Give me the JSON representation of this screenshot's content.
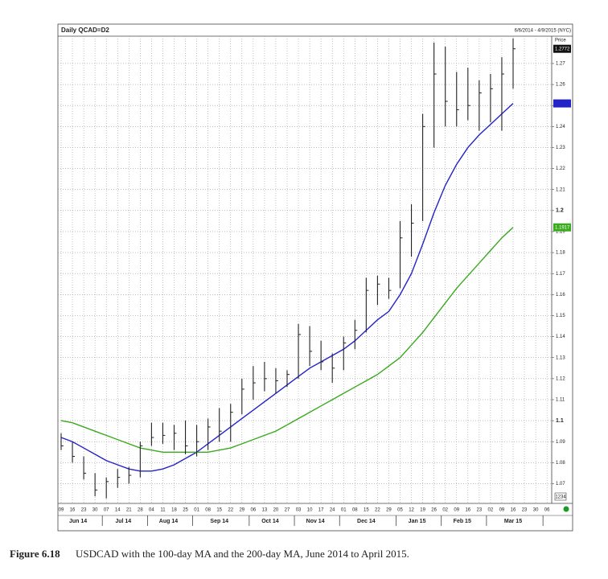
{
  "chart_data": {
    "type": "ohlc",
    "title": "Daily QCAD=D2",
    "date_range": "6/6/2014 - 4/9/2015 (NYC)",
    "price_label": "Price",
    "corner_label": "1234",
    "categories": [
      "09",
      "16",
      "23",
      "30",
      "07",
      "14",
      "21",
      "28",
      "04",
      "11",
      "18",
      "25",
      "01",
      "08",
      "15",
      "22",
      "29",
      "06",
      "13",
      "20",
      "27",
      "03",
      "10",
      "17",
      "24",
      "01",
      "08",
      "15",
      "22",
      "29",
      "05",
      "12",
      "19",
      "26",
      "02",
      "09",
      "16",
      "23",
      "02",
      "09",
      "16",
      "23",
      "30",
      "06"
    ],
    "months": [
      "Jun 14",
      "Jul 14",
      "Aug 14",
      "Sep 14",
      "Oct 14",
      "Nov 14",
      "Dec 14",
      "Jan 15",
      "Feb 15",
      "Mar 15"
    ],
    "high": [
      1.094,
      1.09,
      1.083,
      1.075,
      1.073,
      1.077,
      1.078,
      1.09,
      1.099,
      1.099,
      1.098,
      1.1,
      1.098,
      1.101,
      1.106,
      1.108,
      1.12,
      1.126,
      1.128,
      1.125,
      1.124,
      1.146,
      1.145,
      1.138,
      1.132,
      1.14,
      1.148,
      1.168,
      1.169,
      1.168,
      1.195,
      1.203,
      1.246,
      1.28,
      1.278,
      1.266,
      1.268,
      1.262,
      1.265,
      1.273,
      1.282,
      null,
      null,
      null
    ],
    "low": [
      1.086,
      1.08,
      1.072,
      1.064,
      1.063,
      1.068,
      1.07,
      1.073,
      1.088,
      1.089,
      1.086,
      1.084,
      1.083,
      1.086,
      1.09,
      1.09,
      1.103,
      1.11,
      1.114,
      1.113,
      1.116,
      1.12,
      1.126,
      1.124,
      1.118,
      1.124,
      1.134,
      1.142,
      1.155,
      1.158,
      1.163,
      1.178,
      1.195,
      1.23,
      1.24,
      1.24,
      1.243,
      1.238,
      1.242,
      1.238,
      1.258,
      null,
      null,
      null
    ],
    "close": [
      1.088,
      1.083,
      1.075,
      1.067,
      1.071,
      1.073,
      1.074,
      1.088,
      1.092,
      1.093,
      1.094,
      1.088,
      1.09,
      1.097,
      1.095,
      1.104,
      1.115,
      1.118,
      1.12,
      1.119,
      1.122,
      1.141,
      1.133,
      1.128,
      1.125,
      1.137,
      1.143,
      1.162,
      1.165,
      1.162,
      1.187,
      1.194,
      1.24,
      1.265,
      1.252,
      1.248,
      1.25,
      1.256,
      1.258,
      1.265,
      1.277,
      null,
      null,
      null
    ],
    "bar_color": "#222222",
    "last_price_label": "1.2772",
    "moving_averages": [
      {
        "color": "#2323c8",
        "values": [
          1.092,
          1.09,
          1.087,
          1.084,
          1.081,
          1.079,
          1.077,
          1.076,
          1.076,
          1.077,
          1.079,
          1.082,
          1.085,
          1.089,
          1.093,
          1.097,
          1.101,
          1.105,
          1.109,
          1.113,
          1.117,
          1.121,
          1.125,
          1.128,
          1.131,
          1.134,
          1.138,
          1.143,
          1.148,
          1.152,
          1.16,
          1.17,
          1.184,
          1.199,
          1.212,
          1.222,
          1.23,
          1.236,
          1.241,
          1.246,
          1.251,
          null,
          null,
          null
        ]
      },
      {
        "color": "#3aaa1e",
        "last_label": "1.1917",
        "values": [
          1.1,
          1.099,
          1.097,
          1.095,
          1.093,
          1.091,
          1.089,
          1.087,
          1.086,
          1.085,
          1.085,
          1.085,
          1.085,
          1.085,
          1.086,
          1.087,
          1.089,
          1.091,
          1.093,
          1.095,
          1.098,
          1.101,
          1.104,
          1.107,
          1.11,
          1.113,
          1.116,
          1.119,
          1.122,
          1.126,
          1.13,
          1.136,
          1.142,
          1.149,
          1.156,
          1.163,
          1.169,
          1.175,
          1.181,
          1.187,
          1.192,
          null,
          null,
          null
        ]
      }
    ],
    "ylim": [
      1.061,
      1.283
    ],
    "yticks": [
      1.07,
      1.08,
      1.09,
      1.1,
      1.11,
      1.12,
      1.13,
      1.14,
      1.15,
      1.16,
      1.17,
      1.18,
      1.19,
      1.2,
      1.21,
      1.22,
      1.23,
      1.24,
      1.25,
      1.26,
      1.27
    ],
    "grid": true
  },
  "caption": {
    "label": "Figure 6.18",
    "text": "USDCAD with the 100-day MA and the 200-day MA, June 2014 to April 2015."
  }
}
